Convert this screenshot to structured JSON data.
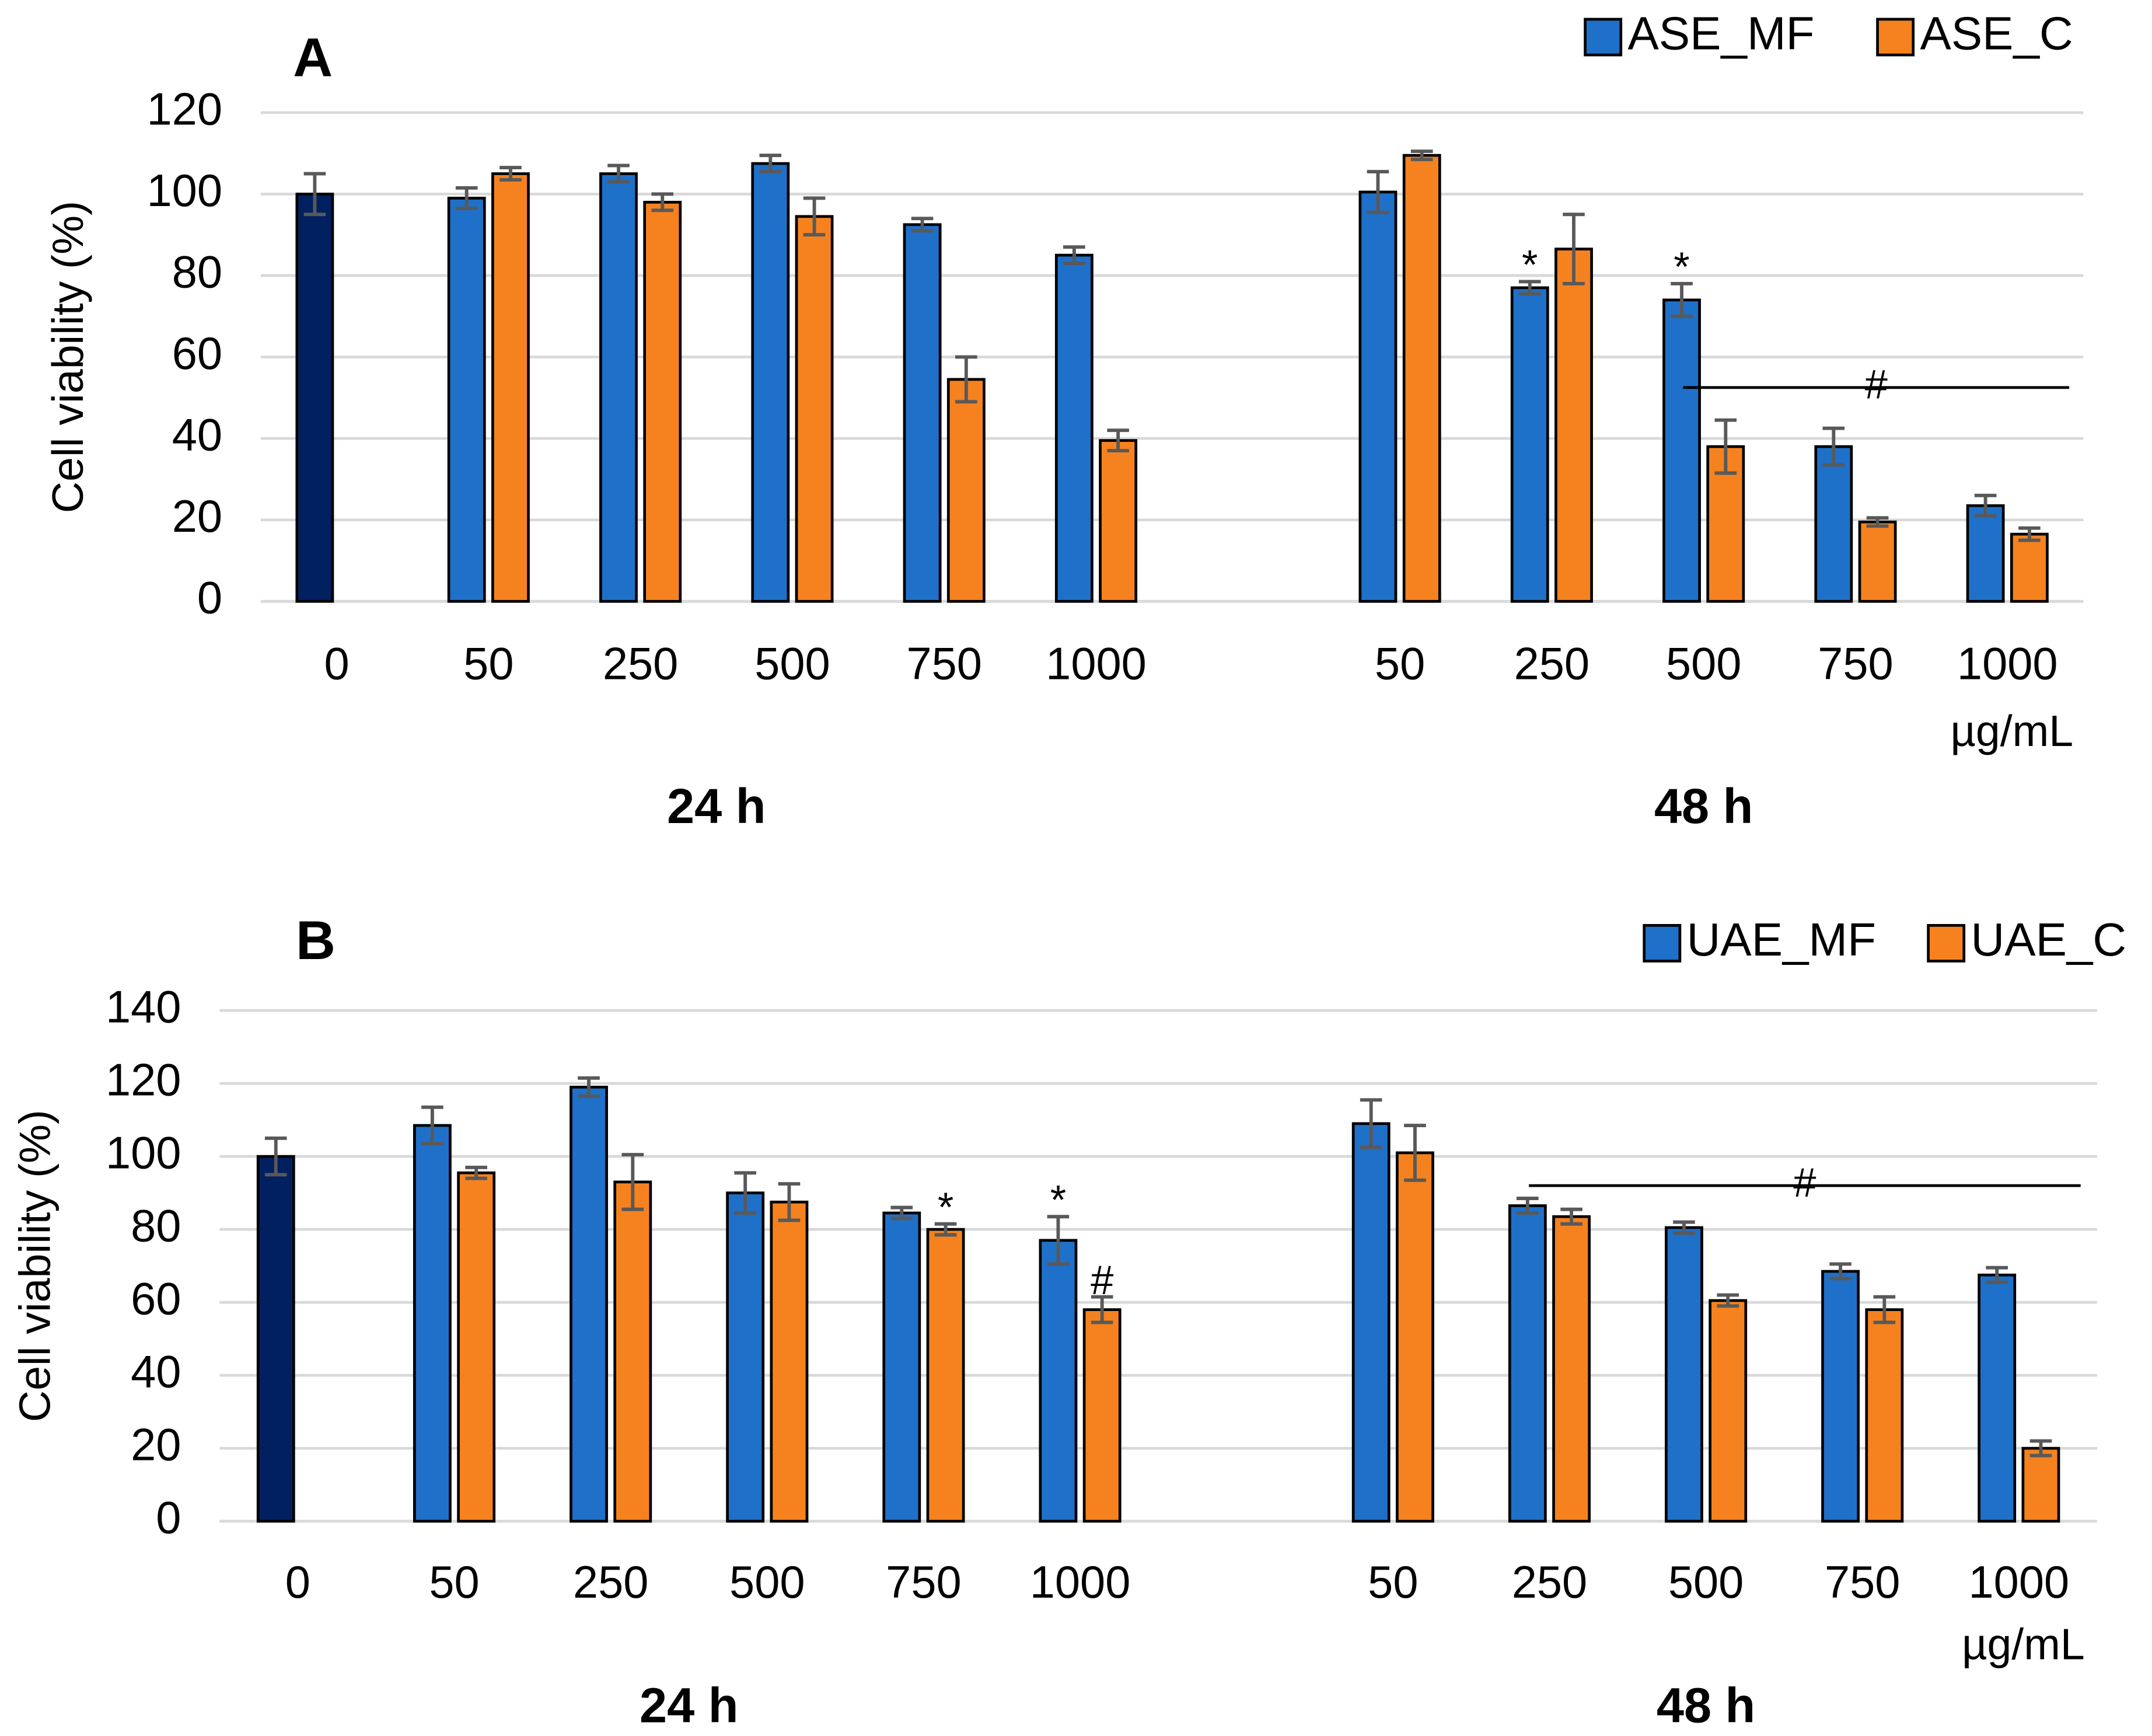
{
  "chart_data": [
    {
      "type": "bar",
      "label": "A",
      "y_label": "Cell viability (%)",
      "x_unit": "µg/mL",
      "categories": [
        "0",
        "50",
        "250",
        "500",
        "750",
        "1000",
        null,
        "50",
        "250",
        "500",
        "750",
        "1000"
      ],
      "groups": [
        {
          "name": "24 h",
          "from": 0,
          "to": 5
        },
        {
          "name": "48 h",
          "from": 7,
          "to": 11
        }
      ],
      "control_color": "#002060",
      "series": [
        {
          "name": "ASE_MF",
          "color": "#1f70c8",
          "values": [
            100,
            99,
            105,
            107.5,
            92.5,
            85,
            null,
            100.5,
            77,
            74,
            38,
            23.5
          ],
          "errors": [
            5,
            2.5,
            2,
            2,
            1.5,
            2,
            null,
            5,
            1.5,
            4,
            4.5,
            2.5
          ]
        },
        {
          "name": "ASE_C",
          "color": "#f5821f",
          "values": [
            null,
            105,
            98,
            94.5,
            54.5,
            39.5,
            null,
            109.5,
            86.5,
            38,
            19.5,
            16.5
          ],
          "errors": [
            null,
            1.5,
            2,
            4.5,
            5.5,
            2.5,
            null,
            1,
            8.5,
            6.5,
            1,
            1.5
          ]
        }
      ],
      "annotations": [
        {
          "text": "*",
          "series": 0,
          "index": 8
        },
        {
          "text": "*",
          "series": 0,
          "index": 9
        }
      ],
      "range_annotations": [
        {
          "text": "#",
          "y": 52.5,
          "from": 9,
          "to": 11
        }
      ],
      "ylim": [
        0,
        120
      ],
      "yticks": [
        0,
        20,
        40,
        60,
        80,
        100,
        120
      ],
      "grid": true,
      "legend": "top-right"
    },
    {
      "type": "bar",
      "label": "B",
      "y_label": "Cell viability (%)",
      "x_unit": "µg/mL",
      "categories": [
        "0",
        "50",
        "250",
        "500",
        "750",
        "1000",
        null,
        "50",
        "250",
        "500",
        "750",
        "1000"
      ],
      "groups": [
        {
          "name": "24 h",
          "from": 0,
          "to": 5
        },
        {
          "name": "48 h",
          "from": 7,
          "to": 11
        }
      ],
      "control_color": "#002060",
      "series": [
        {
          "name": "UAE_MF",
          "color": "#1f70c8",
          "values": [
            100,
            108.5,
            119,
            90,
            84.5,
            77,
            null,
            109,
            86.5,
            80.5,
            68.5,
            67.5
          ],
          "errors": [
            5,
            5,
            2.5,
            5.5,
            1.5,
            6.5,
            null,
            6.5,
            2,
            1.5,
            2,
            2
          ]
        },
        {
          "name": "UAE_C",
          "color": "#f5821f",
          "values": [
            null,
            95.5,
            93,
            87.5,
            80,
            58,
            null,
            101,
            83.5,
            60.5,
            58,
            20
          ],
          "errors": [
            null,
            1.5,
            7.5,
            5,
            1.5,
            3.5,
            null,
            7.5,
            2,
            1.5,
            3.5,
            2
          ]
        }
      ],
      "annotations": [
        {
          "text": "*",
          "series": 1,
          "index": 4
        },
        {
          "text": "*",
          "series": 0,
          "index": 5
        },
        {
          "text": "#",
          "series": 1,
          "index": 5
        }
      ],
      "range_annotations": [
        {
          "text": "#",
          "y": 92,
          "from": 8,
          "to": 11
        }
      ],
      "ylim": [
        0,
        140
      ],
      "yticks": [
        0,
        20,
        40,
        60,
        80,
        100,
        120,
        140
      ],
      "grid": true,
      "legend": "top-right"
    }
  ]
}
